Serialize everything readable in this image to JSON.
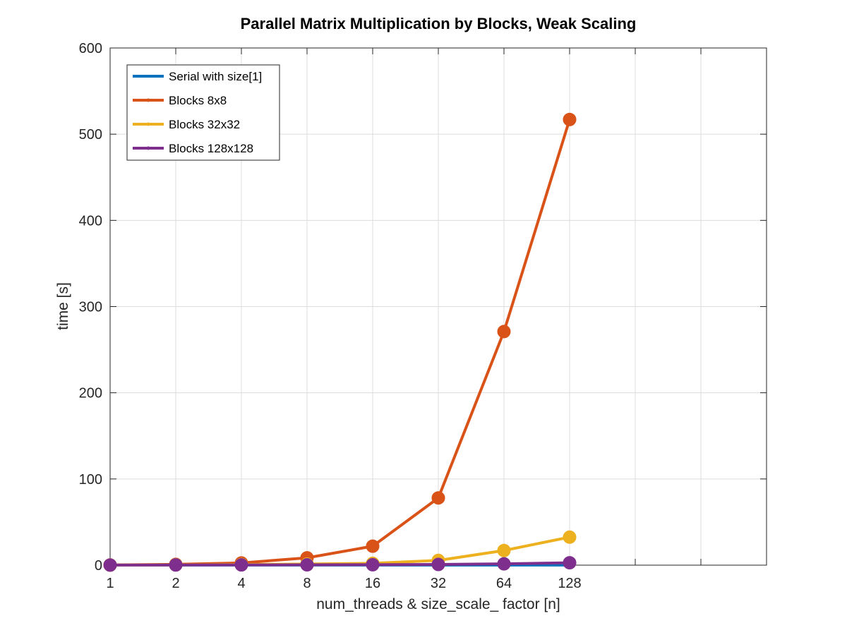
{
  "chart_data": {
    "type": "line",
    "title": "Parallel Matrix Multiplication by Blocks, Weak Scaling",
    "xlabel": "num_threads & size_scale_ factor [n]",
    "ylabel": "time [s]",
    "x_ticks": [
      "1",
      "2",
      "4",
      "8",
      "16",
      "32",
      "64",
      "128"
    ],
    "x_range_index": [
      0,
      10
    ],
    "ylim": [
      0,
      600
    ],
    "y_ticks": [
      0,
      100,
      200,
      300,
      400,
      500,
      600
    ],
    "y_tick_labels": [
      "0",
      "100",
      "200",
      "300",
      "400",
      "500",
      "600"
    ],
    "grid": true,
    "legend_position": "top-left",
    "series": [
      {
        "name": "Serial with size[1]",
        "color": "#0072BD",
        "marker": "none",
        "values": [
          0.1,
          0.1,
          0.1,
          0.1,
          0.1,
          0.1,
          0.1,
          0.1
        ]
      },
      {
        "name": "Blocks 8x8",
        "color": "#D95319",
        "marker": "circle",
        "values": [
          0.2,
          0.9,
          2.6,
          8.5,
          22.0,
          78.0,
          271.0,
          517.0
        ]
      },
      {
        "name": "Blocks 32x32",
        "color": "#EDB120",
        "marker": "circle",
        "values": [
          0.1,
          0.3,
          0.7,
          1.3,
          2.1,
          5.5,
          17.0,
          32.5
        ]
      },
      {
        "name": "Blocks 128x128",
        "color": "#7E2F8E",
        "marker": "circle",
        "values": [
          0.1,
          0.2,
          0.3,
          0.4,
          0.5,
          0.8,
          1.5,
          2.8
        ]
      }
    ]
  }
}
